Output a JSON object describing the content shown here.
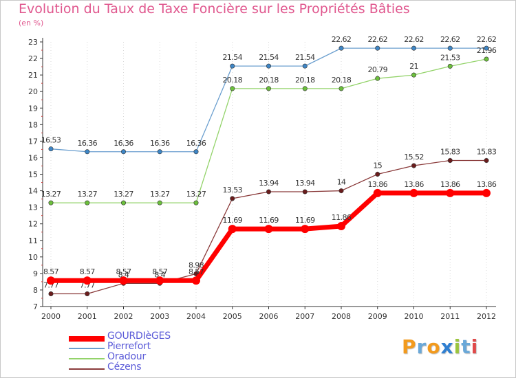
{
  "title": "Evolution du Taux de Taxe Foncière sur les Propriétés Bâties",
  "unit_label": "(en %)",
  "logo": {
    "letters": [
      "P",
      "r",
      "o",
      "x",
      "i",
      "t",
      "i"
    ],
    "colors": [
      "#f29a1d",
      "#6aa8d8",
      "#f29a1d",
      "#2f7fd1",
      "#9bc53d",
      "#6aa8d8",
      "#e04a4a"
    ]
  },
  "chart_data": {
    "type": "line",
    "title": "Evolution du Taux de Taxe Foncière sur les Propriétés Bâties",
    "ylabel": "(en %)",
    "xlabel": "",
    "ylim": [
      7,
      23
    ],
    "yticks": [
      "7",
      "8",
      "9",
      "10",
      "11",
      "12",
      "13",
      "14",
      "15",
      "16",
      "17",
      "18",
      "19",
      "20",
      "21",
      "22",
      "23"
    ],
    "categories": [
      "2000",
      "2001",
      "2002",
      "2003",
      "2004",
      "2005",
      "2006",
      "2007",
      "2008",
      "2009",
      "2010",
      "2011",
      "2012"
    ],
    "series": [
      {
        "name": "Pierrefort",
        "color": "#6b9fcf",
        "marker_color": "#3e86c6",
        "values": [
          16.53,
          16.36,
          16.36,
          16.36,
          16.36,
          21.54,
          21.54,
          21.54,
          22.62,
          22.62,
          22.62,
          22.62,
          22.62
        ],
        "labels": [
          "16.53",
          "16.36",
          "16.36",
          "16.36",
          "16.36",
          "21.54",
          "21.54",
          "21.54",
          "22.62",
          "22.62",
          "22.62",
          "22.62",
          "22.62"
        ]
      },
      {
        "name": "Oradour",
        "color": "#93d36a",
        "marker_color": "#6cc03c",
        "values": [
          13.27,
          13.27,
          13.27,
          13.27,
          13.27,
          20.18,
          20.18,
          20.18,
          20.18,
          20.79,
          21,
          21.53,
          21.96
        ],
        "labels": [
          "13.27",
          "13.27",
          "13.27",
          "13.27",
          "13.27",
          "20.18",
          "20.18",
          "20.18",
          "20.18",
          "20.79",
          "21",
          "21.53",
          "21.96"
        ]
      },
      {
        "name": "Cézens",
        "color": "#8a3a3a",
        "marker_color": "#6a1c1c",
        "values": [
          7.77,
          7.77,
          8.4,
          8.4,
          8.98,
          13.53,
          13.94,
          13.94,
          14,
          15,
          15.52,
          15.83,
          15.83
        ],
        "labels": [
          "7.77",
          "7.77",
          "8.4",
          "8.4",
          "8.98",
          "13.53",
          "13.94",
          "13.94",
          "14",
          "15",
          "15.52",
          "15.83",
          "15.83"
        ]
      },
      {
        "name": "GOURDIèGES",
        "color": "#ff0000",
        "marker_color": "#ff0000",
        "values": [
          8.57,
          8.57,
          8.57,
          8.57,
          8.57,
          11.69,
          11.69,
          11.69,
          11.86,
          13.86,
          13.86,
          13.86,
          13.86
        ],
        "labels": [
          "8.57",
          "8.57",
          "8.57",
          "8.57",
          "8.57",
          "11.69",
          "11.69",
          "11.69",
          "11.86",
          "13.86",
          "13.86",
          "13.86",
          "13.86"
        ]
      }
    ],
    "legend": [
      "GOURDIèGES",
      "Pierrefort",
      "Oradour",
      "Cézens"
    ],
    "legend_position": "bottom-left"
  }
}
